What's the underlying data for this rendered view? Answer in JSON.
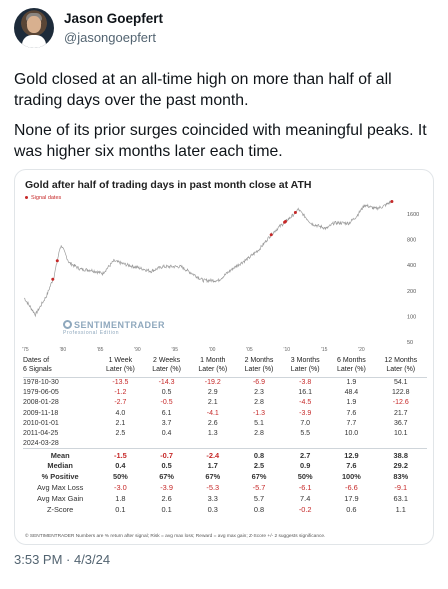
{
  "author": {
    "name": "Jason Goepfert",
    "handle": "@jasongoepfert"
  },
  "tweet": {
    "paragraph1": "Gold closed at an all-time high on more than half of all trading days over the past month.",
    "paragraph2": "None of its prior surges coincided with meaningful peaks. It was higher six months later each time.",
    "timestamp": "3:53 PM · 4/3/24"
  },
  "chart_data": {
    "type": "line",
    "title": "Gold after half of trading days in past month close at ATH",
    "legend": "Signal dates",
    "yscale": "log",
    "ylim": [
      50,
      2100
    ],
    "yticks": [
      "1600",
      "800",
      "400",
      "200",
      "100",
      "50"
    ],
    "xticks": [
      "'75",
      "'80",
      "'85",
      "'90",
      "'95",
      "'00",
      "'05",
      "'10",
      "'15",
      "'20"
    ],
    "series": [
      {
        "x": [
          1975,
          1976.5,
          1978,
          1979,
          1979.8,
          1980,
          1981,
          1982.5,
          1984,
          1985.5,
          1987,
          1988.5,
          1990,
          1992,
          1993.5,
          1996,
          1999,
          2001,
          2003,
          2005,
          2006.5,
          2008,
          2009,
          2011,
          2011.7,
          2013.5,
          2015.5,
          2016.5,
          2018.5,
          2019.5,
          2020.6,
          2022,
          2023,
          2024.2
        ],
        "y": [
          165,
          105,
          175,
          300,
          640,
          680,
          430,
          360,
          350,
          320,
          450,
          410,
          380,
          340,
          385,
          385,
          265,
          265,
          370,
          480,
          620,
          900,
          1100,
          1550,
          1820,
          1230,
          1080,
          1260,
          1250,
          1500,
          2050,
          1850,
          1950,
          2250
        ]
      }
    ],
    "signals": [
      "1978-10-30",
      "1979-06-05",
      "2008-01-28",
      "2009-11-18",
      "2010-01-01",
      "2011-04-25",
      "2024-03-28"
    ],
    "watermark": {
      "main": "SENTIMENTRADER",
      "sub": "Professional Edition"
    }
  },
  "table": {
    "headers": [
      "Dates of\n6 Signals",
      "1 Week\nLater (%)",
      "2 Weeks\nLater (%)",
      "1 Month\nLater (%)",
      "2 Months\nLater (%)",
      "3 Months\nLater (%)",
      "6 Months\nLater (%)",
      "12 Months\nLater (%)"
    ],
    "rows": [
      [
        "1978-10-30",
        "-13.5",
        "-14.3",
        "-19.2",
        "-6.9",
        "-3.8",
        "1.9",
        "54.1"
      ],
      [
        "1979-06-05",
        "-1.2",
        "0.5",
        "2.9",
        "2.3",
        "16.1",
        "48.4",
        "122.8"
      ],
      [
        "2008-01-28",
        "-2.7",
        "-0.5",
        "2.1",
        "2.8",
        "-4.5",
        "1.9",
        "-12.6"
      ],
      [
        "2009-11-18",
        "4.0",
        "6.1",
        "-4.1",
        "-1.3",
        "-3.9",
        "7.6",
        "21.7"
      ],
      [
        "2010-01-01",
        "2.1",
        "3.7",
        "2.6",
        "5.1",
        "7.0",
        "7.7",
        "36.7"
      ],
      [
        "2011-04-25",
        "2.5",
        "0.4",
        "1.3",
        "2.8",
        "5.5",
        "10.0",
        "10.1"
      ],
      [
        "2024-03-28",
        "",
        "",
        "",
        "",
        "",
        "",
        ""
      ]
    ],
    "summary": [
      {
        "label": "Mean",
        "values": [
          "-1.5",
          "-0.7",
          "-2.4",
          "0.8",
          "2.7",
          "12.9",
          "38.8"
        ],
        "bold": true
      },
      {
        "label": "Median",
        "values": [
          "0.4",
          "0.5",
          "1.7",
          "2.5",
          "0.9",
          "7.6",
          "29.2"
        ],
        "bold": true
      },
      {
        "label": "% Positive",
        "values": [
          "50%",
          "67%",
          "67%",
          "67%",
          "50%",
          "100%",
          "83%"
        ],
        "bold": true
      },
      {
        "label": "Avg Max Loss",
        "values": [
          "-3.0",
          "-3.9",
          "-5.3",
          "-5.7",
          "-6.1",
          "-6.6",
          "-9.1"
        ],
        "bold": false
      },
      {
        "label": "Avg Max Gain",
        "values": [
          "1.8",
          "2.6",
          "3.3",
          "5.7",
          "7.4",
          "17.9",
          "63.1"
        ],
        "bold": false
      },
      {
        "label": "Z-Score",
        "values": [
          "0.1",
          "0.1",
          "0.3",
          "0.8",
          "-0.2",
          "0.6",
          "1.1"
        ],
        "bold": false
      }
    ],
    "footnote": "© SENTIMENTRADER  Numbers are % return after signal; Risk = avg max loss; Reward = avg max gain; Z-Score +/- 2 suggests significance."
  },
  "colors": {
    "line": "#9a9a9a",
    "signal": "#c62828",
    "negative": "#c62828",
    "border": "#e1e5e8",
    "muted": "#536471"
  }
}
